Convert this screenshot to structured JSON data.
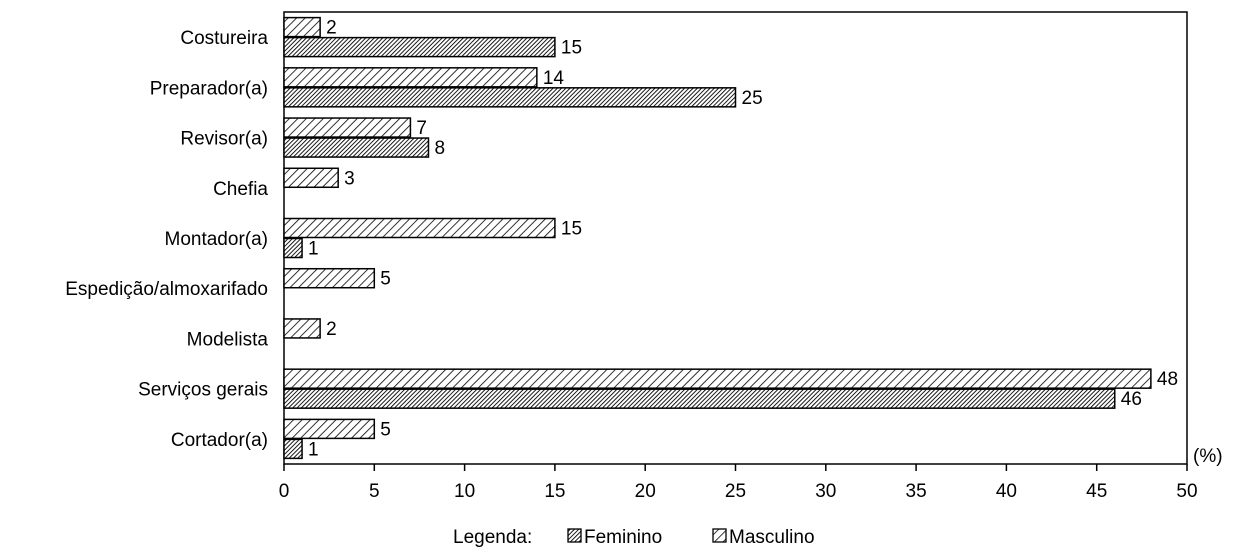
{
  "chart_data": {
    "type": "bar",
    "orientation": "horizontal",
    "categories": [
      "Costureira",
      "Preparador(a)",
      "Revisor(a)",
      "Chefia",
      "Montador(a)",
      "Espedição/almoxarifado",
      "Modelista",
      "Serviços gerais",
      "Cortador(a)"
    ],
    "series": [
      {
        "name": "Masculino",
        "values": [
          2,
          14,
          7,
          3,
          15,
          5,
          2,
          48,
          5
        ],
        "pattern": "diagonal-hatch"
      },
      {
        "name": "Feminino",
        "values": [
          15,
          25,
          8,
          null,
          1,
          null,
          null,
          46,
          1
        ],
        "pattern": "dense-hatch"
      }
    ],
    "xlim": [
      0,
      50
    ],
    "xticks": [
      0,
      5,
      10,
      15,
      20,
      25,
      30,
      35,
      40,
      45,
      50
    ],
    "unit_label": "(%)",
    "legend": {
      "title": "Legenda:",
      "placement": "bottom-center",
      "order": [
        "Feminino",
        "Masculino"
      ]
    },
    "grid": false
  },
  "colors": {
    "bar_fill": "#ffffff",
    "bar_stroke": "#000000",
    "hatch": "#000000"
  }
}
